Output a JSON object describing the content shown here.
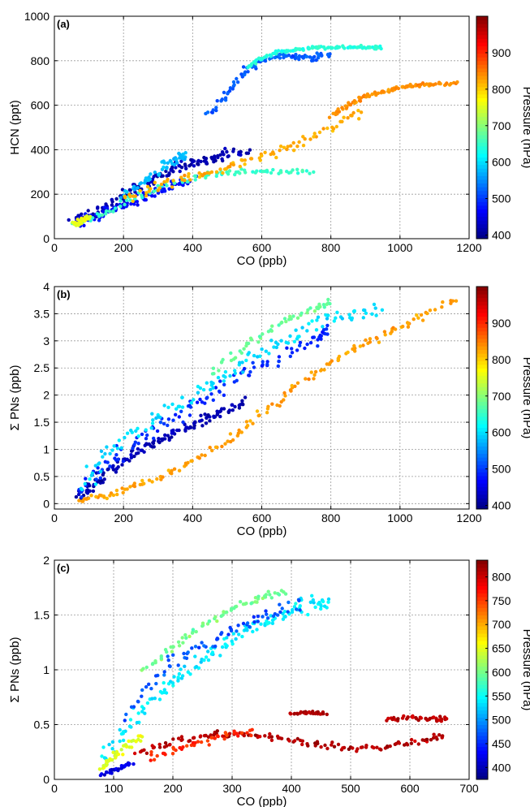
{
  "chart_data": [
    {
      "type": "scatter",
      "panel_label": "(a)",
      "xlabel": "CO (ppb)",
      "ylabel": "HCN (ppt)",
      "xlim": [
        0,
        1200
      ],
      "ylim": [
        0,
        1000
      ],
      "xticks": [
        "0",
        "200",
        "400",
        "600",
        "800",
        "1000",
        "1200"
      ],
      "yticks": [
        "0",
        "200",
        "400",
        "600",
        "800",
        "1000"
      ],
      "grid": true,
      "colorbar": {
        "label": "Pressure (hPa)",
        "range": [
          390,
          1000
        ],
        "ticks": [
          "400",
          "500",
          "600",
          "700",
          "800",
          "900"
        ]
      },
      "series": [
        {
          "x": [
            60,
            100,
            150,
            200,
            250,
            300,
            350,
            400,
            450,
            500,
            560
          ],
          "y": [
            80,
            100,
            140,
            190,
            230,
            280,
            320,
            340,
            360,
            380,
            400
          ],
          "pressure": 420,
          "spread": [
            30,
            40
          ]
        },
        {
          "x": [
            60,
            100,
            150,
            200,
            250,
            300,
            350,
            400
          ],
          "y": [
            70,
            90,
            120,
            150,
            180,
            210,
            240,
            270
          ],
          "pressure": 470,
          "spread": [
            25,
            30
          ]
        },
        {
          "x": [
            200,
            260,
            320,
            360,
            380
          ],
          "y": [
            180,
            250,
            330,
            360,
            380
          ],
          "pressure": 580,
          "spread": [
            20,
            30
          ]
        },
        {
          "x": [
            450,
            500,
            550,
            600,
            650,
            700,
            750,
            800
          ],
          "y": [
            560,
            650,
            750,
            800,
            830,
            820,
            810,
            830
          ],
          "pressure": 520,
          "spread": [
            20,
            20
          ]
        },
        {
          "x": [
            560,
            600,
            650,
            700,
            750,
            800,
            850,
            900,
            950
          ],
          "y": [
            770,
            810,
            840,
            850,
            860,
            860,
            860,
            860,
            860
          ],
          "pressure": 640,
          "spread": [
            15,
            10
          ]
        },
        {
          "x": [
            60,
            150,
            250,
            350,
            450,
            550,
            650,
            750
          ],
          "y": [
            60,
            120,
            200,
            260,
            290,
            300,
            300,
            300
          ],
          "pressure": 650,
          "spread": [
            25,
            20
          ]
        },
        {
          "x": [
            200,
            300,
            400,
            500,
            600,
            700,
            800,
            900
          ],
          "y": [
            180,
            230,
            280,
            320,
            370,
            420,
            500,
            580
          ],
          "pressure": 820,
          "spread": [
            20,
            30
          ]
        },
        {
          "x": [
            800,
            850,
            900,
            950,
            1000,
            1050,
            1100,
            1170
          ],
          "y": [
            550,
            600,
            640,
            660,
            680,
            690,
            695,
            700
          ],
          "pressure": 840,
          "spread": [
            15,
            10
          ]
        },
        {
          "x": [
            60,
            80,
            100
          ],
          "y": [
            60,
            80,
            100
          ],
          "pressure": 760,
          "spread": [
            15,
            15
          ]
        }
      ]
    },
    {
      "type": "scatter",
      "panel_label": "(b)",
      "xlabel": "CO (ppb)",
      "ylabel": "Σ PNs (ppb)",
      "xlim": [
        0,
        1200
      ],
      "ylim": [
        -0.1,
        4
      ],
      "xticks": [
        "0",
        "200",
        "400",
        "600",
        "800",
        "1000",
        "1200"
      ],
      "yticks": [
        "0",
        "0.5",
        "1",
        "1.5",
        "2",
        "2.5",
        "3",
        "3.5",
        "4"
      ],
      "grid": true,
      "colorbar": {
        "label": "Pressure (hPa)",
        "range": [
          390,
          1000
        ],
        "ticks": [
          "400",
          "500",
          "600",
          "700",
          "800",
          "900"
        ]
      },
      "series": [
        {
          "x": [
            70,
            100,
            150,
            200,
            250,
            300,
            350,
            400,
            450,
            500,
            560
          ],
          "y": [
            0.1,
            0.3,
            0.55,
            0.8,
            1.0,
            1.15,
            1.3,
            1.45,
            1.6,
            1.75,
            1.9
          ],
          "pressure": 420,
          "spread": [
            30,
            0.12
          ]
        },
        {
          "x": [
            70,
            150,
            250,
            350,
            450,
            550,
            650,
            750,
            800
          ],
          "y": [
            0.2,
            0.7,
            1.2,
            1.6,
            2.0,
            2.4,
            2.7,
            3.0,
            3.3
          ],
          "pressure": 490,
          "spread": [
            30,
            0.2
          ]
        },
        {
          "x": [
            80,
            150,
            250,
            350,
            450,
            550,
            650,
            750,
            850,
            950
          ],
          "y": [
            0.3,
            0.9,
            1.4,
            1.8,
            2.2,
            2.6,
            3.0,
            3.3,
            3.5,
            3.6
          ],
          "pressure": 600,
          "spread": [
            30,
            0.2
          ]
        },
        {
          "x": [
            450,
            550,
            650,
            750,
            800
          ],
          "y": [
            2.4,
            2.9,
            3.3,
            3.6,
            3.7
          ],
          "pressure": 680,
          "spread": [
            20,
            0.1
          ]
        },
        {
          "x": [
            70,
            150,
            250,
            350,
            450,
            550,
            650,
            750,
            850,
            950,
            1050,
            1170
          ],
          "y": [
            0.05,
            0.15,
            0.35,
            0.6,
            0.95,
            1.4,
            1.9,
            2.4,
            2.8,
            3.1,
            3.4,
            3.8
          ],
          "pressure": 830,
          "spread": [
            25,
            0.08
          ]
        }
      ]
    },
    {
      "type": "scatter",
      "panel_label": "(c)",
      "xlabel": "CO (ppb)",
      "ylabel": "Σ PNs (ppb)",
      "xlim": [
        0,
        700
      ],
      "ylim": [
        0,
        2
      ],
      "xticks": [
        "0",
        "100",
        "200",
        "300",
        "400",
        "500",
        "600",
        "700"
      ],
      "yticks": [
        "0",
        "0.5",
        "1",
        "1.5",
        "2"
      ],
      "grid": true,
      "colorbar": {
        "label": "Pressure (hPa)",
        "range": [
          375,
          835
        ],
        "ticks": [
          "400",
          "450",
          "500",
          "550",
          "600",
          "650",
          "700",
          "750",
          "800"
        ]
      },
      "series": [
        {
          "x": [
            80,
            120,
            160,
            200,
            240,
            280,
            320,
            360,
            400,
            440,
            460
          ],
          "y": [
            0.15,
            0.45,
            0.7,
            0.9,
            1.05,
            1.2,
            1.35,
            1.45,
            1.55,
            1.6,
            1.6
          ],
          "pressure": 540,
          "spread": [
            15,
            0.1
          ]
        },
        {
          "x": [
            150,
            200,
            250,
            300,
            350,
            390
          ],
          "y": [
            1.0,
            1.2,
            1.4,
            1.55,
            1.65,
            1.72
          ],
          "pressure": 600,
          "spread": [
            10,
            0.05
          ]
        },
        {
          "x": [
            120,
            180,
            240,
            300,
            360,
            420
          ],
          "y": [
            0.6,
            1.0,
            1.2,
            1.35,
            1.5,
            1.6
          ],
          "pressure": 470,
          "spread": [
            15,
            0.08
          ]
        },
        {
          "x": [
            80,
            100,
            120,
            150
          ],
          "y": [
            0.1,
            0.2,
            0.3,
            0.4
          ],
          "pressure": 650,
          "spread": [
            10,
            0.05
          ]
        },
        {
          "x": [
            140,
            200,
            260,
            320,
            380,
            440,
            500,
            560,
            620,
            660
          ],
          "y": [
            0.25,
            0.35,
            0.4,
            0.42,
            0.38,
            0.32,
            0.28,
            0.3,
            0.35,
            0.4
          ],
          "pressure": 810,
          "spread": [
            10,
            0.05
          ]
        },
        {
          "x": [
            160,
            220,
            280,
            340
          ],
          "y": [
            0.2,
            0.3,
            0.4,
            0.42
          ],
          "pressure": 760,
          "spread": [
            12,
            0.05
          ]
        },
        {
          "x": [
            400,
            430,
            460
          ],
          "y": [
            0.6,
            0.61,
            0.6
          ],
          "pressure": 810,
          "spread": [
            6,
            0.02
          ]
        },
        {
          "x": [
            560,
            600,
            640,
            665
          ],
          "y": [
            0.55,
            0.56,
            0.55,
            0.56
          ],
          "pressure": 810,
          "spread": [
            6,
            0.03
          ]
        },
        {
          "x": [
            80,
            110,
            130
          ],
          "y": [
            0.05,
            0.1,
            0.15
          ],
          "pressure": 420,
          "spread": [
            8,
            0.04
          ]
        }
      ]
    }
  ]
}
